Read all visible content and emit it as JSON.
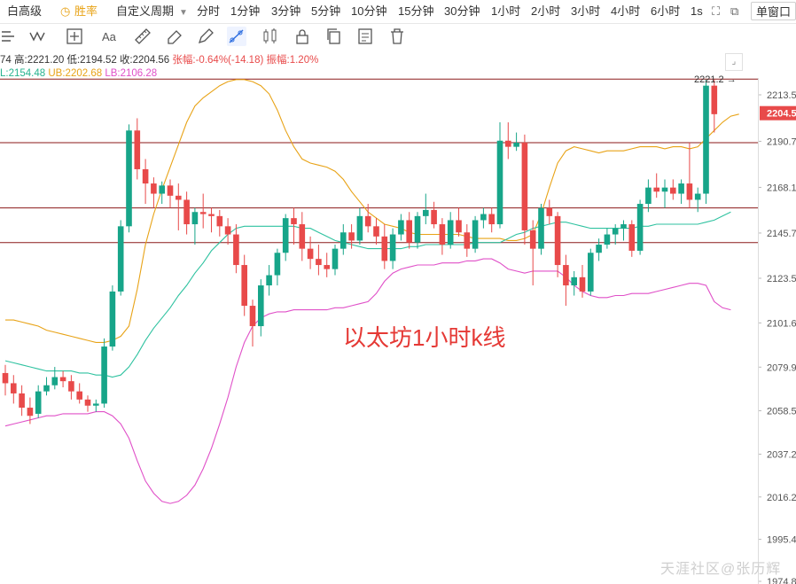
{
  "topbar": {
    "items": [
      {
        "label": "白高级",
        "icon": "",
        "active": false
      },
      {
        "label": "胜率",
        "icon": "clock-icon",
        "active": false
      },
      {
        "label": "自定义周期",
        "icon": "chevron-down-icon",
        "active": false
      }
    ],
    "periods": [
      "分时",
      "1分钟",
      "3分钟",
      "5分钟",
      "10分钟",
      "15分钟",
      "30分钟",
      "1小时",
      "2小时",
      "3小时",
      "4小时",
      "6小时",
      "1s"
    ],
    "active_period": "1小时",
    "window_mode": "单窗口"
  },
  "toolbar": {
    "tools": [
      "menu-icon",
      "wave-icon",
      "crosshair-icon",
      "text-icon",
      "ruler-icon",
      "eraser-icon",
      "pencil-icon",
      "trendline-icon",
      "candles-icon",
      "lock-icon",
      "copy-icon",
      "note-icon",
      "trash-icon"
    ],
    "selected": "trendline-icon"
  },
  "info": {
    "line1": {
      "open_tail": "74",
      "high": "高:2221.20",
      "low": "低:2194.52",
      "close": "收:2204.56",
      "change": "张幅:-0.64%(-14.18)",
      "amplitude": "振幅:1.20%"
    },
    "line2": {
      "mid": "L:2154.48",
      "ub": "UB:2202.68",
      "lb": "LB:2106.28"
    }
  },
  "annotation": "以太坊1小时k线",
  "watermark": "天涯社区@张历辉",
  "high_marker": "2221.2",
  "current_price": "2204.5",
  "chart_data": {
    "type": "candlestick",
    "y_ticks": [
      "2213.5",
      "2190.7",
      "2168.1",
      "2145.7",
      "2123.5",
      "2101.6",
      "2079.9",
      "2058.5",
      "2037.2",
      "2016.2",
      "1995.4",
      "1974.8"
    ],
    "colors": {
      "up": "#17a589",
      "down": "#e84a4a",
      "ma": "#e8a317",
      "ub": "#e8a317",
      "lb": "#e050c8",
      "mid": "#2fc2a0",
      "hline": "#8b1a1a",
      "price_tag": "#e84a4a"
    },
    "horizontal_lines": [
      2221.2,
      2190.0,
      2158.0,
      2141.0
    ],
    "candles": [
      [
        2077,
        2081,
        2066,
        2072
      ],
      [
        2072,
        2076,
        2062,
        2067
      ],
      [
        2067,
        2071,
        2056,
        2060
      ],
      [
        2060,
        2065,
        2052,
        2056
      ],
      [
        2057,
        2071,
        2055,
        2068
      ],
      [
        2068,
        2075,
        2066,
        2071
      ],
      [
        2071,
        2080,
        2069,
        2075
      ],
      [
        2075,
        2078,
        2070,
        2073
      ],
      [
        2073,
        2076,
        2064,
        2068
      ],
      [
        2068,
        2072,
        2062,
        2064
      ],
      [
        2064,
        2066,
        2058,
        2061
      ],
      [
        2061,
        2064,
        2058,
        2062
      ],
      [
        2062,
        2094,
        2060,
        2090
      ],
      [
        2090,
        2120,
        2088,
        2117
      ],
      [
        2117,
        2152,
        2115,
        2149
      ],
      [
        2149,
        2199,
        2146,
        2196
      ],
      [
        2196,
        2202,
        2172,
        2177
      ],
      [
        2177,
        2182,
        2160,
        2170
      ],
      [
        2170,
        2173,
        2158,
        2165
      ],
      [
        2165,
        2171,
        2160,
        2169
      ],
      [
        2169,
        2172,
        2158,
        2164
      ],
      [
        2164,
        2170,
        2147,
        2162
      ],
      [
        2162,
        2166,
        2145,
        2150
      ],
      [
        2150,
        2158,
        2140,
        2156
      ],
      [
        2156,
        2165,
        2148,
        2155
      ],
      [
        2155,
        2158,
        2146,
        2154
      ],
      [
        2154,
        2157,
        2144,
        2149
      ],
      [
        2149,
        2153,
        2140,
        2145
      ],
      [
        2145,
        2150,
        2126,
        2130
      ],
      [
        2130,
        2135,
        2105,
        2110
      ],
      [
        2110,
        2113,
        2090,
        2100
      ],
      [
        2100,
        2123,
        2095,
        2120
      ],
      [
        2120,
        2130,
        2115,
        2125
      ],
      [
        2125,
        2138,
        2120,
        2136
      ],
      [
        2136,
        2155,
        2132,
        2153
      ],
      [
        2153,
        2158,
        2140,
        2150
      ],
      [
        2150,
        2156,
        2132,
        2138
      ],
      [
        2138,
        2144,
        2128,
        2133
      ],
      [
        2133,
        2140,
        2125,
        2130
      ],
      [
        2130,
        2136,
        2124,
        2128
      ],
      [
        2128,
        2140,
        2125,
        2138
      ],
      [
        2138,
        2150,
        2135,
        2146
      ],
      [
        2146,
        2150,
        2138,
        2142
      ],
      [
        2142,
        2158,
        2140,
        2154
      ],
      [
        2154,
        2160,
        2146,
        2149
      ],
      [
        2149,
        2153,
        2140,
        2144
      ],
      [
        2144,
        2150,
        2128,
        2132
      ],
      [
        2132,
        2148,
        2128,
        2145
      ],
      [
        2145,
        2155,
        2142,
        2152
      ],
      [
        2152,
        2156,
        2138,
        2141
      ],
      [
        2141,
        2156,
        2138,
        2154
      ],
      [
        2154,
        2165,
        2150,
        2157
      ],
      [
        2157,
        2161,
        2148,
        2150
      ],
      [
        2150,
        2153,
        2135,
        2140
      ],
      [
        2140,
        2156,
        2138,
        2152
      ],
      [
        2152,
        2158,
        2144,
        2146
      ],
      [
        2146,
        2150,
        2134,
        2138
      ],
      [
        2138,
        2154,
        2136,
        2152
      ],
      [
        2152,
        2158,
        2148,
        2155
      ],
      [
        2155,
        2158,
        2146,
        2150
      ],
      [
        2150,
        2200,
        2148,
        2191
      ],
      [
        2191,
        2200,
        2182,
        2188
      ],
      [
        2188,
        2195,
        2186,
        2190
      ],
      [
        2190,
        2194,
        2140,
        2147
      ],
      [
        2147,
        2152,
        2120,
        2138
      ],
      [
        2138,
        2160,
        2135,
        2158
      ],
      [
        2158,
        2162,
        2150,
        2154
      ],
      [
        2154,
        2156,
        2124,
        2130
      ],
      [
        2130,
        2135,
        2110,
        2120
      ],
      [
        2120,
        2127,
        2115,
        2124
      ],
      [
        2124,
        2130,
        2114,
        2117
      ],
      [
        2117,
        2138,
        2115,
        2136
      ],
      [
        2136,
        2143,
        2132,
        2140
      ],
      [
        2140,
        2148,
        2138,
        2145
      ],
      [
        2145,
        2150,
        2140,
        2148
      ],
      [
        2148,
        2152,
        2142,
        2150
      ],
      [
        2150,
        2152,
        2134,
        2137
      ],
      [
        2137,
        2162,
        2135,
        2160
      ],
      [
        2160,
        2172,
        2156,
        2168
      ],
      [
        2168,
        2175,
        2163,
        2166
      ],
      [
        2166,
        2172,
        2158,
        2168
      ],
      [
        2168,
        2172,
        2162,
        2165
      ],
      [
        2165,
        2172,
        2160,
        2170
      ],
      [
        2170,
        2190,
        2158,
        2162
      ],
      [
        2162,
        2168,
        2156,
        2165
      ],
      [
        2165,
        2221,
        2160,
        2218
      ],
      [
        2218,
        2221,
        2195,
        2204
      ]
    ],
    "ma_line": [
      2103,
      2103,
      2102,
      2101,
      2100,
      2098,
      2097,
      2096,
      2095,
      2094,
      2093,
      2092,
      2092,
      2093,
      2095,
      2100,
      2118,
      2140,
      2155,
      2167,
      2178,
      2189,
      2200,
      2208,
      2212,
      2215,
      2218,
      2220,
      2221,
      2221,
      2220,
      2218,
      2214,
      2206,
      2196,
      2188,
      2182,
      2180,
      2179,
      2178,
      2176,
      2172,
      2166,
      2161,
      2156,
      2153,
      2150,
      2149,
      2148,
      2146,
      2145,
      2145,
      2145,
      2145,
      2145,
      2145,
      2144,
      2143,
      2143,
      2143,
      2143,
      2142,
      2142,
      2143,
      2145,
      2155,
      2168,
      2180,
      2186,
      2188,
      2187,
      2186,
      2185,
      2186,
      2186,
      2186,
      2187,
      2188,
      2188,
      2188,
      2187,
      2188,
      2188,
      2187,
      2188,
      2192,
      2196,
      2200,
      2203,
      2204
    ],
    "lb_line": [
      2051,
      2052,
      2053,
      2054,
      2055,
      2056,
      2056,
      2057,
      2057,
      2057,
      2057,
      2058,
      2058,
      2056,
      2052,
      2045,
      2034,
      2024,
      2018,
      2014,
      2013,
      2014,
      2017,
      2022,
      2030,
      2040,
      2052,
      2065,
      2080,
      2092,
      2100,
      2104,
      2106,
      2107,
      2107,
      2108,
      2108,
      2108,
      2108,
      2108,
      2109,
      2109,
      2110,
      2111,
      2112,
      2116,
      2122,
      2126,
      2128,
      2129,
      2130,
      2130,
      2130,
      2131,
      2131,
      2131,
      2132,
      2132,
      2133,
      2133,
      2131,
      2128,
      2127,
      2126,
      2127,
      2127,
      2127,
      2127,
      2124,
      2120,
      2117,
      2115,
      2114,
      2114,
      2115,
      2115,
      2116,
      2116,
      2116,
      2117,
      2118,
      2119,
      2120,
      2121,
      2121,
      2120,
      2112,
      2109,
      2108
    ],
    "mid_line": [
      2083,
      2082,
      2081,
      2080,
      2079,
      2078,
      2078,
      2078,
      2078,
      2077,
      2077,
      2076,
      2076,
      2075,
      2076,
      2080,
      2086,
      2093,
      2099,
      2104,
      2109,
      2115,
      2120,
      2126,
      2131,
      2137,
      2141,
      2145,
      2148,
      2149,
      2149,
      2149,
      2149,
      2149,
      2149,
      2149,
      2148,
      2148,
      2146,
      2144,
      2142,
      2141,
      2140,
      2139,
      2138,
      2138,
      2138,
      2138,
      2138,
      2139,
      2139,
      2140,
      2140,
      2140,
      2140,
      2140,
      2140,
      2141,
      2141,
      2141,
      2141,
      2143,
      2145,
      2146,
      2148,
      2149,
      2150,
      2151,
      2151,
      2150,
      2149,
      2148,
      2148,
      2148,
      2148,
      2148,
      2148,
      2149,
      2149,
      2150,
      2150,
      2150,
      2150,
      2150,
      2150,
      2151,
      2152,
      2154,
      2156
    ]
  }
}
